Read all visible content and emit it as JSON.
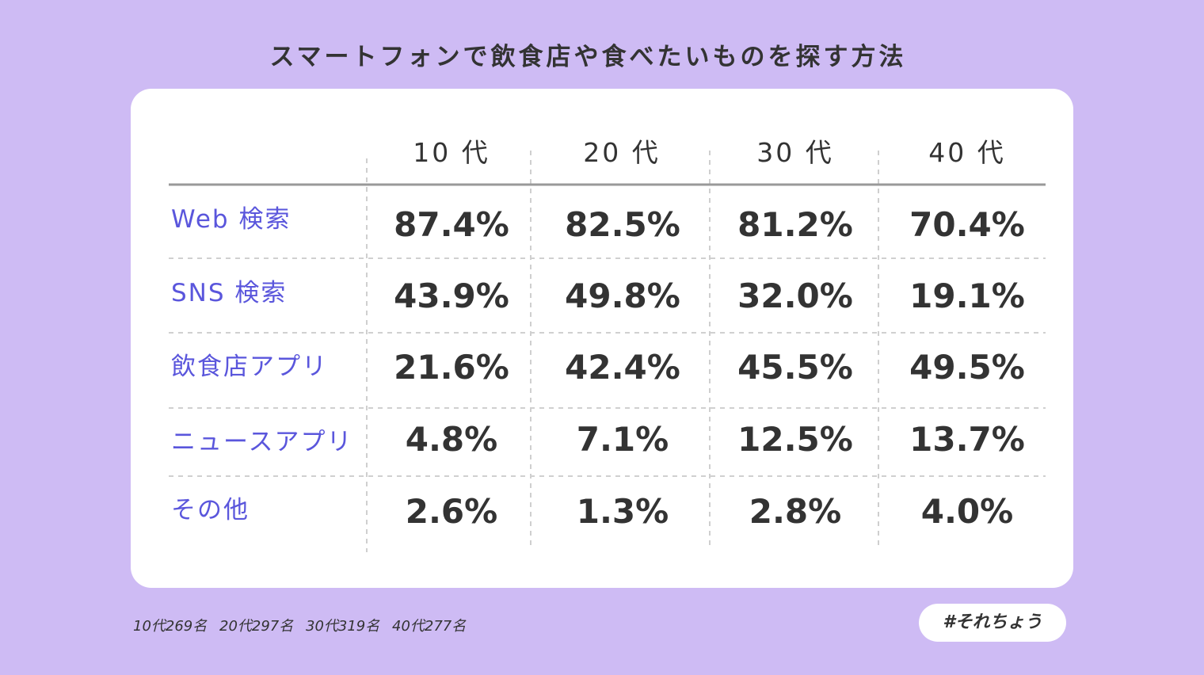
{
  "title": "スマートフォンで飲食店や食べたいものを探す方法",
  "footnote": [
    "10代269名",
    "20代297名",
    "30代319名",
    "40代277名"
  ],
  "hashtag": "#それちょう",
  "colors": {
    "background": "#cebbf4",
    "card": "#ffffff",
    "row_label": "#5a56dc",
    "text": "#333333"
  },
  "chart_data": {
    "type": "table",
    "title": "スマートフォンで飲食店や食べたいものを探す方法",
    "columns": [
      "10 代",
      "20 代",
      "30 代",
      "40 代"
    ],
    "rows": [
      {
        "label": "Web 検索",
        "values": [
          "87.4%",
          "82.5%",
          "81.2%",
          "70.4%"
        ]
      },
      {
        "label": "SNS 検索",
        "values": [
          "43.9%",
          "49.8%",
          "32.0%",
          "19.1%"
        ]
      },
      {
        "label": "飲食店アプリ",
        "values": [
          "21.6%",
          "42.4%",
          "45.5%",
          "49.5%"
        ]
      },
      {
        "label": "ニュースアプリ",
        "values": [
          "4.8%",
          "7.1%",
          "12.5%",
          "13.7%"
        ]
      },
      {
        "label": "その他",
        "values": [
          "2.6%",
          "1.3%",
          "2.8%",
          "4.0%"
        ]
      }
    ]
  }
}
